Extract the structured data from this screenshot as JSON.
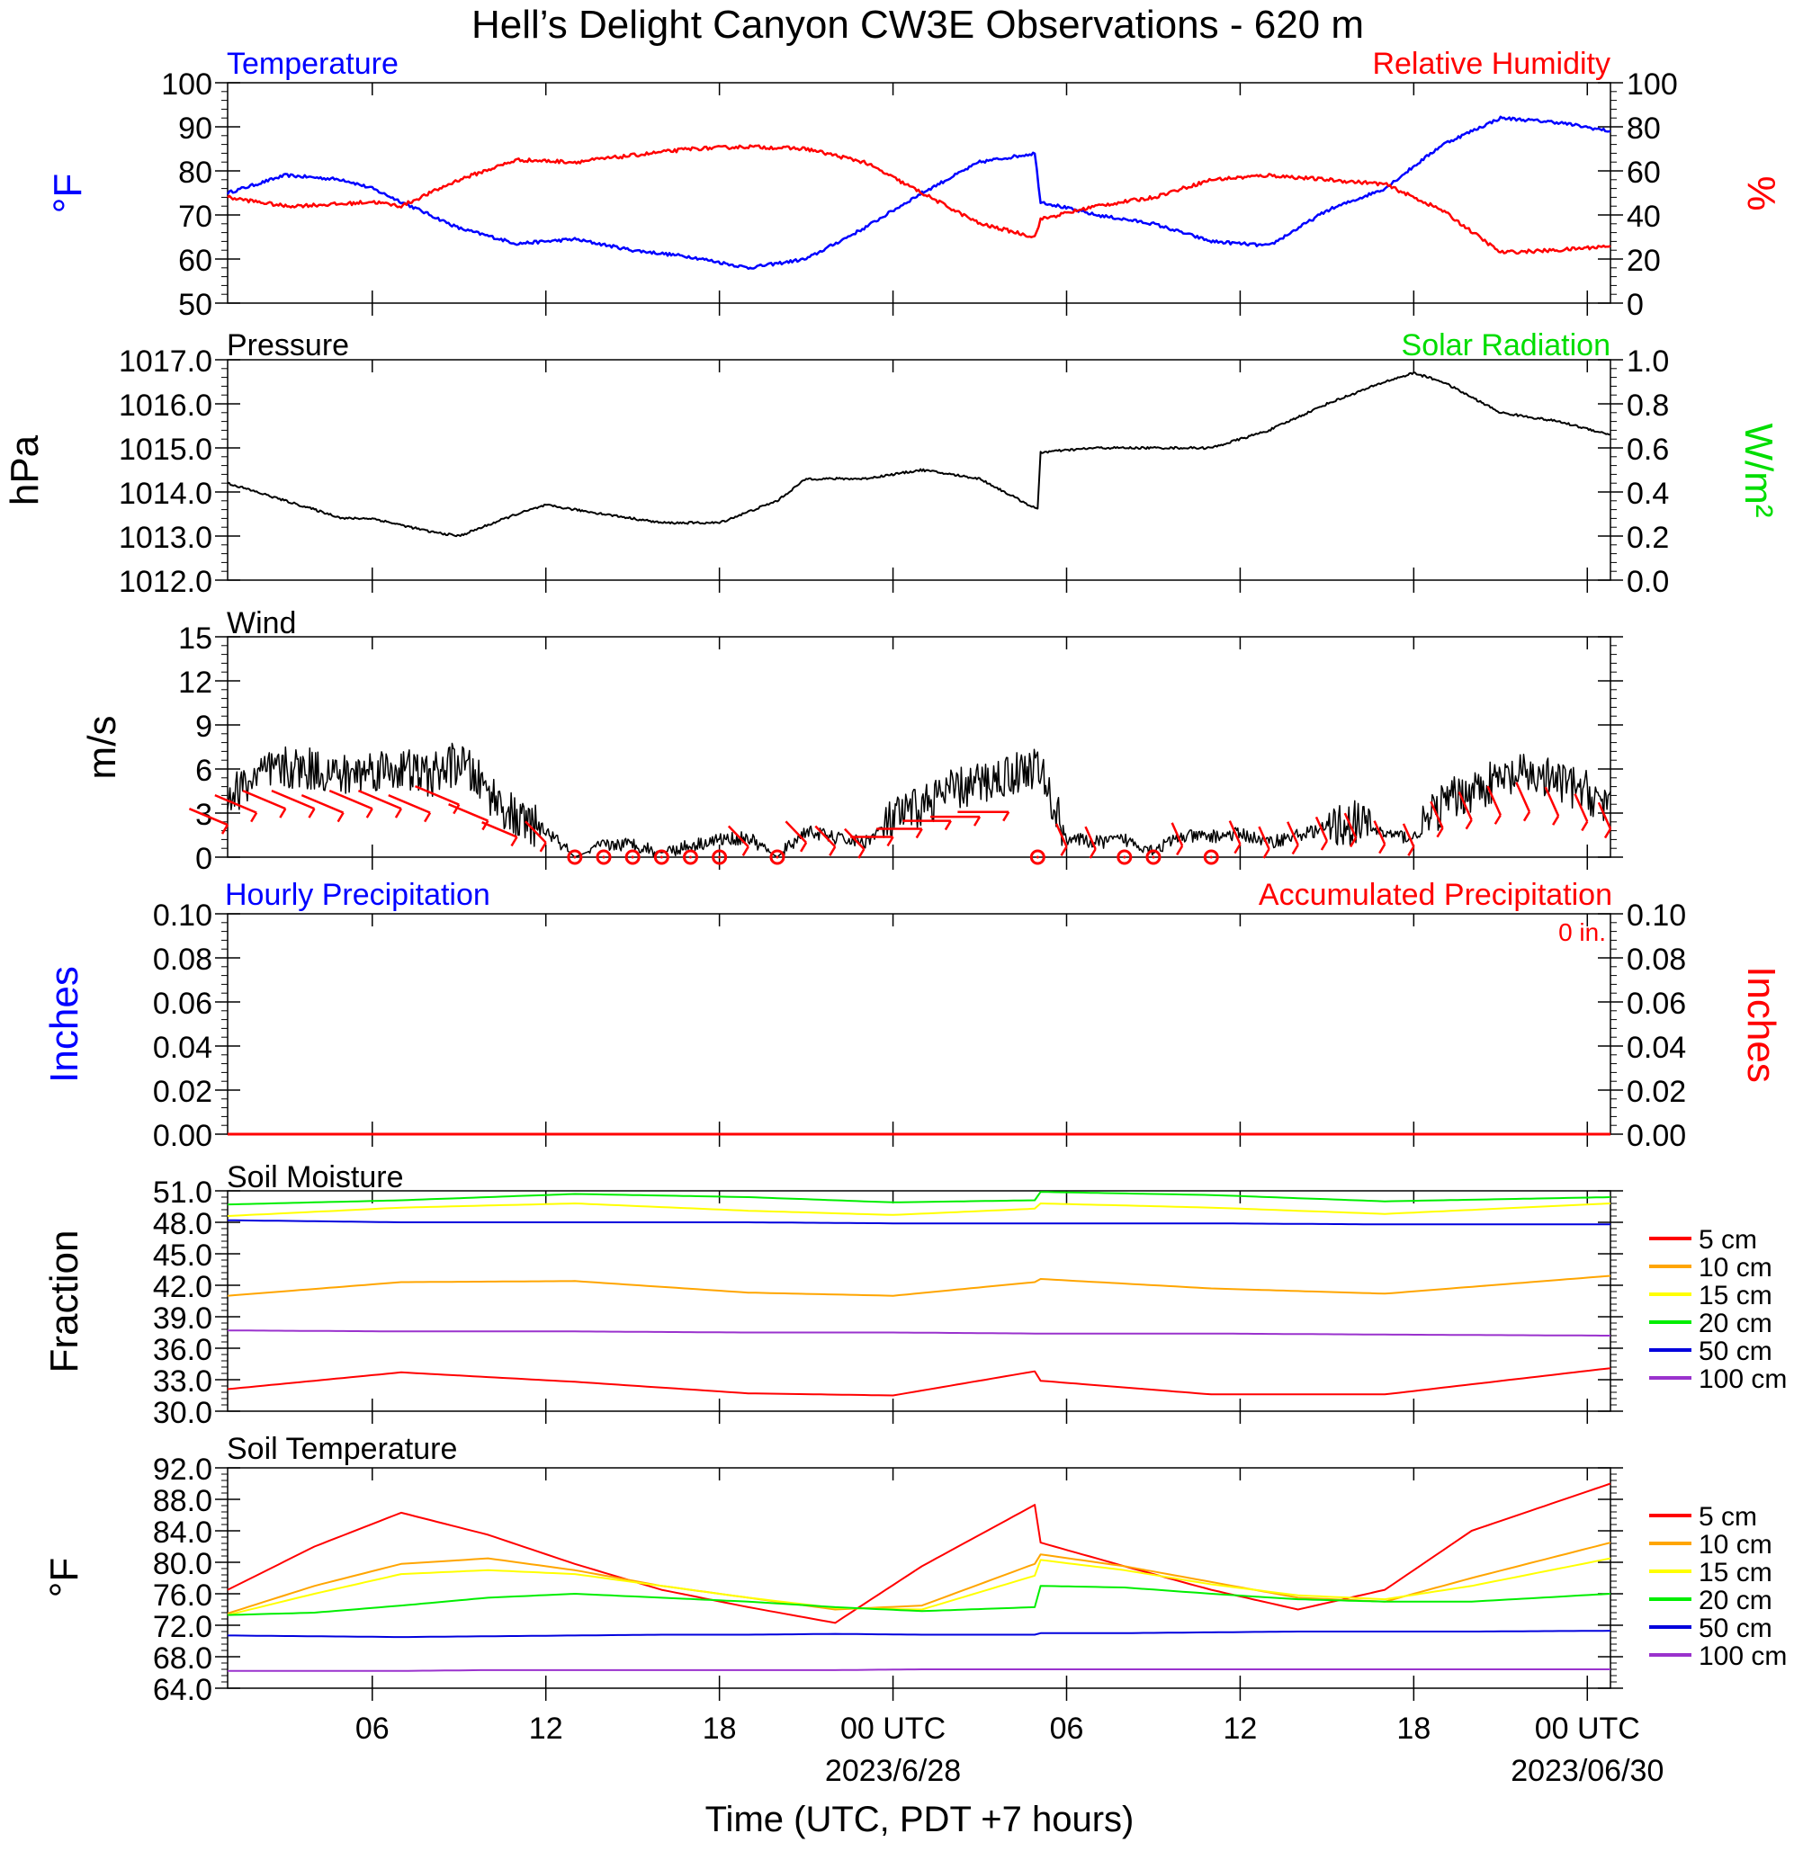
{
  "title": "Hell’s Delight Canyon CW3E Observations - 620 m",
  "xlabel": "Time (UTC, PDT +7 hours)",
  "x_ticks": [
    "06",
    "12",
    "18",
    "00 UTC",
    "06",
    "12",
    "18",
    "00 UTC"
  ],
  "x_dates": [
    "2023/6/28",
    "2023/06/30"
  ],
  "colors": {
    "temperature": "#0000ff",
    "humidity": "#ff0000",
    "pressure": "#000000",
    "solar": "#00dd00",
    "wind": "#000000",
    "barb": "#ff0000",
    "soil": {
      "5 cm": "#ff0000",
      "10 cm": "#ffa500",
      "15 cm": "#ffff00",
      "20 cm": "#00ee00",
      "50 cm": "#0000dd",
      "100 cm": "#9a32cd"
    }
  },
  "chart_data": [
    {
      "type": "line",
      "panel": "temperature-humidity",
      "left_label": "Temperature",
      "right_label": "Relative Humidity",
      "ylabel_left": "°F",
      "ylabel_right": "%",
      "ylim_left": [
        50,
        100
      ],
      "ylim_right": [
        0,
        100
      ],
      "yticks_left": [
        "100",
        "90",
        "80",
        "70",
        "60",
        "50"
      ],
      "yticks_right": [
        "100",
        "80",
        "60",
        "40",
        "20",
        "0"
      ],
      "x_hours": [
        1,
        3,
        5,
        6,
        7,
        9,
        11,
        13,
        15,
        17,
        19,
        21,
        23,
        25,
        27,
        28.9,
        29.1,
        31,
        33,
        35,
        37,
        39,
        41,
        43,
        45,
        47,
        48.8
      ],
      "series": [
        {
          "name": "Temperature",
          "values": [
            75,
            79,
            78,
            76,
            73,
            67,
            63.5,
            64.5,
            62,
            60.5,
            58,
            60,
            67,
            75,
            82,
            84,
            73,
            70,
            68,
            64,
            63,
            71,
            76,
            86,
            92,
            91,
            89
          ]
        },
        {
          "name": "Relative Humidity",
          "values": [
            48,
            44,
            45,
            46,
            44,
            56,
            65,
            64,
            67,
            70,
            71,
            70,
            64,
            50,
            36,
            30,
            38,
            44,
            48,
            56,
            58,
            56,
            54,
            42,
            23,
            24,
            26
          ]
        }
      ]
    },
    {
      "type": "line",
      "panel": "pressure",
      "left_label": "Pressure",
      "right_label": "Solar Radiation",
      "ylabel_left": "hPa",
      "ylabel_right": "W/m²",
      "ylim_left": [
        1012,
        1017
      ],
      "ylim_right": [
        0,
        1
      ],
      "yticks_left": [
        "1017.0",
        "1016.0",
        "1015.0",
        "1014.0",
        "1013.0",
        "1012.0"
      ],
      "yticks_right": [
        "1.0",
        "0.8",
        "0.6",
        "0.4",
        "0.2",
        "0.0"
      ],
      "x_hours": [
        1,
        3,
        5,
        6,
        8,
        9,
        11,
        12,
        14,
        16,
        18,
        20,
        21,
        23,
        25,
        27,
        29.0,
        29.1,
        31,
        33,
        35,
        37,
        39,
        41,
        42,
        43,
        45,
        47,
        48.8
      ],
      "series": [
        {
          "name": "Pressure",
          "values": [
            1014.2,
            1013.8,
            1013.4,
            1013.4,
            1013.1,
            1013.0,
            1013.5,
            1013.7,
            1013.5,
            1013.3,
            1013.3,
            1013.8,
            1014.3,
            1014.3,
            1014.5,
            1014.3,
            1013.6,
            1014.9,
            1015.0,
            1015.0,
            1015.0,
            1015.4,
            1016.0,
            1016.5,
            1016.7,
            1016.5,
            1015.8,
            1015.6,
            1015.3
          ]
        }
      ]
    },
    {
      "type": "line",
      "panel": "wind",
      "left_label": "Wind",
      "ylabel_left": "m/s",
      "ylim_left": [
        0,
        15
      ],
      "yticks_left": [
        "15",
        "12",
        "9",
        "6",
        "3",
        "0"
      ],
      "x_hours": [
        1,
        2,
        3,
        4,
        5,
        6,
        7,
        8,
        9,
        10,
        11,
        12,
        13,
        14,
        15,
        16,
        17,
        18,
        19,
        20,
        21,
        22,
        23,
        24,
        25,
        26,
        27,
        28,
        29,
        30,
        31,
        32,
        33,
        34,
        35,
        36,
        37,
        38,
        39,
        40,
        41,
        42,
        43,
        44,
        45,
        46,
        47,
        48,
        48.8
      ],
      "series": [
        {
          "name": "Wind speed",
          "values": [
            4,
            5.5,
            6,
            6,
            5.5,
            6,
            6,
            5.5,
            6.5,
            4.5,
            2.5,
            1.8,
            0,
            0.8,
            0.9,
            0.3,
            0.8,
            1.2,
            1.3,
            0,
            1.8,
            1.3,
            1.0,
            2.5,
            3.5,
            4.5,
            5.0,
            5.6,
            6.2,
            1.3,
            1.0,
            1.2,
            0.5,
            1.4,
            1.4,
            1.6,
            1.0,
            1.5,
            2.0,
            2.4,
            1.6,
            1.3,
            3.6,
            4.6,
            5.2,
            5.6,
            5.1,
            4.4,
            3.5
          ]
        }
      ],
      "calm_hours": [
        13,
        14,
        15,
        16,
        17,
        18,
        20,
        29,
        32,
        33,
        35
      ]
    },
    {
      "type": "line",
      "panel": "precipitation",
      "left_label": "Hourly Precipitation",
      "right_label": "Accumulated Precipitation",
      "total_label": "0 in.",
      "ylabel_left": "Inches",
      "ylabel_right": "Inches",
      "ylim_left": [
        0,
        0.1
      ],
      "ylim_right": [
        0,
        0.1
      ],
      "yticks_left": [
        "0.10",
        "0.08",
        "0.06",
        "0.04",
        "0.02",
        "0.00"
      ],
      "yticks_right": [
        "0.10",
        "0.08",
        "0.06",
        "0.04",
        "0.02",
        "0.00"
      ],
      "x_hours": [
        1,
        48.8
      ],
      "series": [
        {
          "name": "Accumulated Precipitation",
          "values": [
            0,
            0
          ]
        }
      ]
    },
    {
      "type": "line",
      "panel": "soil-moisture",
      "left_label": "Soil Moisture",
      "ylabel_left": "Fraction",
      "ylim_left": [
        30,
        51
      ],
      "yticks_left": [
        "51.0",
        "48.0",
        "45.0",
        "42.0",
        "39.0",
        "36.0",
        "33.0",
        "30.0"
      ],
      "legend": [
        "5 cm",
        "10 cm",
        "15 cm",
        "20 cm",
        "50 cm",
        "100 cm"
      ],
      "x_hours": [
        1,
        7,
        13,
        19,
        24,
        28.9,
        29.1,
        35,
        41,
        48.8
      ],
      "series": [
        {
          "name": "5 cm",
          "values": [
            32.1,
            33.7,
            32.8,
            31.7,
            31.5,
            33.8,
            32.9,
            31.6,
            31.6,
            34.1
          ]
        },
        {
          "name": "10 cm",
          "values": [
            41.0,
            42.3,
            42.4,
            41.3,
            41.0,
            42.3,
            42.6,
            41.7,
            41.2,
            42.9
          ]
        },
        {
          "name": "15 cm",
          "values": [
            48.6,
            49.4,
            49.8,
            49.1,
            48.7,
            49.3,
            49.8,
            49.4,
            48.8,
            49.8
          ]
        },
        {
          "name": "20 cm",
          "values": [
            49.7,
            50.1,
            50.7,
            50.4,
            49.9,
            50.1,
            50.9,
            50.6,
            50.0,
            50.4
          ]
        },
        {
          "name": "50 cm",
          "values": [
            48.2,
            48.0,
            48.0,
            48.0,
            47.9,
            47.9,
            47.9,
            47.9,
            47.8,
            47.8
          ]
        },
        {
          "name": "100 cm",
          "values": [
            37.7,
            37.6,
            37.6,
            37.5,
            37.5,
            37.4,
            37.4,
            37.4,
            37.3,
            37.2
          ]
        }
      ]
    },
    {
      "type": "line",
      "panel": "soil-temperature",
      "left_label": "Soil Temperature",
      "ylabel_left": "°F",
      "ylim_left": [
        64,
        92
      ],
      "yticks_left": [
        "92.0",
        "88.0",
        "84.0",
        "80.0",
        "76.0",
        "72.0",
        "68.0",
        "64.0"
      ],
      "legend": [
        "5 cm",
        "10 cm",
        "15 cm",
        "20 cm",
        "50 cm",
        "100 cm"
      ],
      "x_hours": [
        1,
        4,
        7,
        10,
        13,
        16,
        19,
        22,
        25,
        28.9,
        29.1,
        32,
        35,
        38,
        41,
        44,
        48.8
      ],
      "series": [
        {
          "name": "5 cm",
          "values": [
            76.5,
            82.0,
            86.3,
            83.5,
            79.8,
            76.5,
            74.3,
            72.3,
            79.5,
            87.3,
            82.5,
            79.5,
            76.5,
            74.0,
            76.5,
            84.0,
            90.0
          ]
        },
        {
          "name": "10 cm",
          "values": [
            73.5,
            77.0,
            79.8,
            80.5,
            79.0,
            77.0,
            75.5,
            74.0,
            74.5,
            79.8,
            81.0,
            79.5,
            77.5,
            75.5,
            75.0,
            78.0,
            82.5
          ]
        },
        {
          "name": "15 cm",
          "values": [
            73.3,
            76.0,
            78.5,
            79.0,
            78.5,
            77.0,
            75.5,
            74.2,
            74.0,
            78.3,
            80.3,
            79.0,
            77.2,
            75.8,
            75.3,
            77.0,
            80.5
          ]
        },
        {
          "name": "20 cm",
          "values": [
            73.3,
            73.6,
            74.5,
            75.5,
            76.0,
            75.5,
            75.0,
            74.3,
            73.8,
            74.3,
            77.0,
            76.8,
            76.0,
            75.3,
            75.0,
            75.0,
            76.0
          ]
        },
        {
          "name": "50 cm",
          "values": [
            70.7,
            70.6,
            70.5,
            70.6,
            70.7,
            70.8,
            70.8,
            70.9,
            70.8,
            70.8,
            71.0,
            71.0,
            71.1,
            71.2,
            71.2,
            71.2,
            71.3
          ]
        },
        {
          "name": "100 cm",
          "values": [
            66.2,
            66.2,
            66.2,
            66.3,
            66.3,
            66.3,
            66.3,
            66.3,
            66.4,
            66.4,
            66.4,
            66.4,
            66.4,
            66.4,
            66.4,
            66.4,
            66.4
          ]
        }
      ]
    }
  ]
}
